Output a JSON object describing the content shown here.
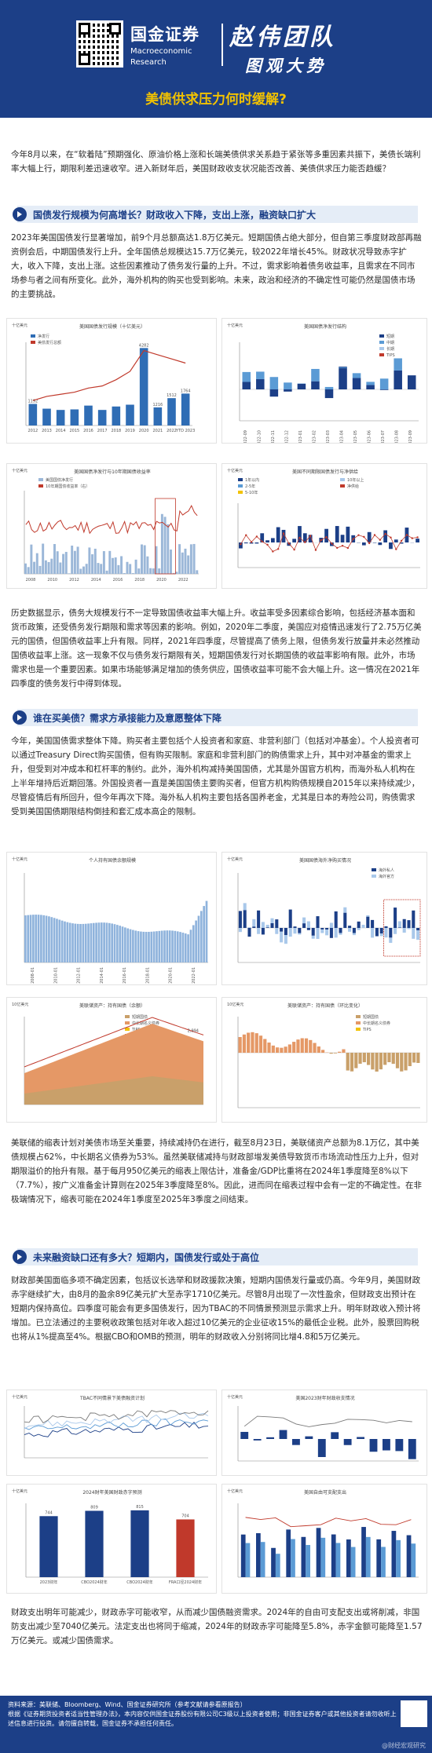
{
  "header": {
    "brand_cn": "国金证券",
    "brand_en_1": "Macroeconomic",
    "brand_en_2": "Research",
    "calli_1": "赵伟团队",
    "calli_2": "图观大势",
    "title": "美债供求压力何时缓解?"
  },
  "intro": "今年8月以来，在“软着陆”预期强化、原油价格上涨和长端美债供求关系趋于紧张等多重因素共振下，美债长端利率大幅上行，期限利差迅速收窄。进入新财年后，美国财政收支状况能否改善、美债供求压力能否趋缓？",
  "sections": [
    {
      "heading": "国债发行规模为何高增长？财政收入下降，支出上涨，融资缺口扩大",
      "para1": "2023年美国国债发行显著增加，前9个月总额高达1.8万亿美元。短期国债占绝大部分，但自第三季度财政部再融资例会后，中期国债发行上升。全年国债总规模达15.7万亿美元，较2022年增长45%。财政状况导致赤字扩大，收入下降，支出上涨。这些因素推动了债务发行量的上升。不过，需求影响着债务收益率，且需求在不同市场参与者之间有所变化。此外，海外机构的购买也受到影响。未来，政治和经济的不确定性可能仍然是国债市场的主要挑战。",
      "para2": "历史数据显示，债务大规模发行不一定导致国债收益率大幅上升。收益率受多因素综合影响，包括经济基本面和货币政策，还受债务发行期限和需求等因素的影响。例如，2020年二季度，美国应对疫情迅速发行了2.75万亿美元的国债，但国债收益率上升有限。同样，2021年四季度，尽管提高了债务上限，但债务发行放量并未必然推动国债收益率上涨。这一现象不仅与债务发行期限有关，短期国债发行对长期国债的收益率影响有限。此外，市场需求也是一个重要因素。如果市场能够满足增加的债务供应，国债收益率可能不会大幅上升。这一情况在2021年四季度的债务发行中得到体现。"
    },
    {
      "heading": "谁在买美债？需求方承接能力及意愿整体下降",
      "para1": "今年，美国国债需求整体下降。购买者主要包括个人投资者和家庭、非营利部门（包括对冲基金）。个人投资者可以通过Treasury Direct购买国债，但有购买限制。家庭和非营利部门的购债需求上升，其中对冲基金的需求上升，但受到对冲成本和杠杆率的制约。此外，海外机构减持美国国债，尤其是外国官方机构，而海外私人机构在上半年增持后近期回落。外国投资者一直是美国国债主要购买者，但官方机构购债规模自2015年以来持续减少，尽管疫情后有所回升，但今年再次下降。海外私人机构主要包括各国养老金，尤其是日本的寿险公司，购债需求受到美国国债期限结构倒挂和套汇成本高企的限制。",
      "para2": "美联储的缩表计划对美债市场至关重要，持续减持仍在进行，截至8月23日，美联储资产总额为8.1万亿，其中美债规模占62%，中长期名义债券为53%。虽然美联储减持与财政部增发美债导致货币市场流动性压力上升，但对期限溢价的抬升有限。基于每月950亿美元的缩表上限估计，准备金/GDP比重将在2024年1季度降至8%以下（7.7%），按广义准备金计算则在2025年3季度降至8%。因此，进而同在缩表过程中会有一定的不确定性。在非极端情况下，缩表可能在2024年1季度至2025年3季度之间结束。"
    },
    {
      "heading": "未来融资缺口还有多大？短期内，国债发行或处于高位",
      "para1": "财政部美国面临多项不确定因素，包括议长选举和财政援款决策，短期内国债发行量或仍高。今年9月，美国财政赤字继续扩大，由8月的盈余89亿美元扩大至赤字1710亿美元。尽管8月出现了一次性盈余，但财政支出预计在短期内保持高位。四季度可能会有更多国债发行，因为TBAC的不同情景预测显示需求上升。明年财政收入预计将增加。已立法通过的主要税收政策包括对年收入超过10亿美元的企业征收15%的最低企业税。此外，股票回购税也将从1%提高至4%。根据CBO和OMB的预测，明年的财政收入分别将同比增4.8和5万亿美元。",
      "para2": "财政支出明年可能减少，财政赤字可能收窄，从而减少国债融资需求。2024年的自由可支配支出或将削减，非国防支出减少至7040亿美元。法定支出也将同于缩减，2024年的财政赤字可能降至5.8%，赤字金额可能降至1.57万亿美元。或减少国债需求。"
    }
  ],
  "charts": [
    {
      "id": "issuance",
      "title": "美国国债发行规模（十亿美元）",
      "unit": "十亿美元",
      "legend": [
        "净发行",
        "美债发行总额"
      ],
      "categories": [
        "2012",
        "2013",
        "2014",
        "2015",
        "2016",
        "2017",
        "2018",
        "2019",
        "2020",
        "2021",
        "2022",
        "YTD 2023"
      ],
      "bars": [
        1192,
        930,
        860,
        890,
        1100,
        860,
        1050,
        1150,
        4282,
        1000,
        1512,
        1764
      ],
      "labels": [
        "1192",
        "",
        "",
        "",
        "",
        "",
        "",
        "",
        "4282",
        "",
        "1512",
        "1764"
      ],
      "line": [
        60,
        70,
        75,
        80,
        90,
        95,
        110,
        130,
        180,
        170,
        160,
        150
      ],
      "extra_labels": [
        "1216"
      ]
    },
    {
      "id": "net-issuance-structure",
      "title": "美国国债净发行结构",
      "unit": "十亿美元",
      "legend": [
        "短期",
        "中期",
        "长期",
        "TIPS"
      ],
      "categories": [
        "2022-09",
        "2022-10",
        "2022-11",
        "2022-12",
        "2023-01",
        "2023-02",
        "2023-03",
        "2023-04",
        "2023-05",
        "2023-06",
        "2023-07",
        "2023-08",
        "2023-09"
      ]
    },
    {
      "id": "yield-issuance",
      "title": "美国国债净发行与10年期国债收益率",
      "unit": "十亿美元",
      "legend": [
        "美国国债净发行",
        "10年期国债收益率（右）"
      ],
      "categories": [
        "2008",
        "2010",
        "2012",
        "2014",
        "2016",
        "2018",
        "2020",
        "2022"
      ]
    },
    {
      "id": "maturity-structure",
      "title": "美国不同期限国债发行与净供给",
      "unit": "十亿美元",
      "legend": [
        "1年以内",
        "2-5年",
        "5-10年",
        "10年以上",
        "净供给"
      ]
    },
    {
      "id": "individual-holdings",
      "title": "个人持有国债余额规模",
      "unit": "十亿美元",
      "categories": [
        "2008-01",
        "2010-01",
        "2012-01",
        "2014-01",
        "2016-01",
        "2018-01",
        "2020-01",
        "2022-01"
      ]
    },
    {
      "id": "foreign-purchases",
      "title": "美国国债海外净购买情况",
      "unit": "十亿美元",
      "legend": [
        "海外私人",
        "海外官方"
      ]
    },
    {
      "id": "fed-holdings-balance",
      "title": "美联储资产：持有国债（余额）",
      "unit": "10亿美元",
      "legend": [
        "短期国债",
        "中长期名义债券",
        "TIPS",
        "美联储资产"
      ],
      "annotation": "2,994"
    },
    {
      "id": "fed-holdings-change",
      "title": "美联储资产：持有国债（环比变化）",
      "unit": "10亿美元",
      "legend": [
        "短期国债",
        "中长期名义债券",
        "TIPS"
      ]
    },
    {
      "id": "tbac",
      "title": "TBAC不同情景下美债融资计划",
      "unit": "十亿美元"
    },
    {
      "id": "deficit",
      "title": "美国2023财年财政收支情况",
      "unit": "十亿美元"
    },
    {
      "id": "deficit-forecast",
      "title": "2024财年美国财政赤字预测",
      "unit": "十亿美元",
      "categories": [
        "2023财年",
        "CBO2024财年",
        "CBO2024财年",
        "FRA口径2024财年"
      ],
      "values": [
        744,
        809,
        815,
        704
      ],
      "labels": [
        "744",
        "809",
        "815",
        "704"
      ]
    },
    {
      "id": "budget",
      "title": "美国自由可支配支出",
      "unit": "十亿美元"
    }
  ],
  "footer": {
    "source": "资料来源：美联储、Bloomberg、Wind、国金证券研究所（参考文献请参看原报告）",
    "disclaimer": "根据《证券期货投资者适当性管理办法》，本内容仅供国金证券股份有限公司C3级以上投资者使用；非国金证券客户或其他投资者请勿收听上述信息进行投资。请勿擅自转载，国金证券不承担任何责任。",
    "watermark": "@财经宏观研究"
  },
  "colors": {
    "brand": "#1c3f87",
    "accent": "#f2c200",
    "red": "#c0392b",
    "blue": "#2f6db5"
  }
}
